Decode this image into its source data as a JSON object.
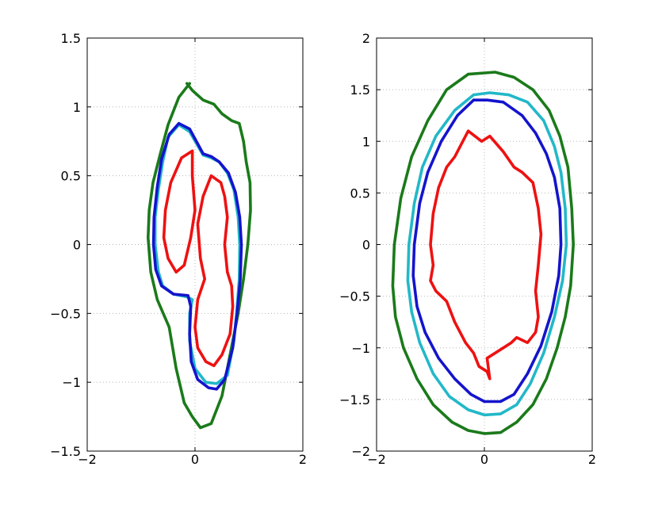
{
  "chart_data": [
    {
      "type": "line",
      "title": "",
      "xlabel": "",
      "ylabel": "",
      "xlim": [
        -2,
        2
      ],
      "ylim": [
        -1.5,
        1.5
      ],
      "xticks": [
        -2,
        0,
        2
      ],
      "xtick_labels": [
        "−2",
        "0",
        "2"
      ],
      "yticks": [
        -1.5,
        -1,
        -0.5,
        0,
        0.5,
        1,
        1.5
      ],
      "ytick_labels": [
        "−1.5",
        "−1",
        "−0.5",
        "0",
        "0.5",
        "1",
        "1.5"
      ],
      "grid": true,
      "series": [
        {
          "color": "#1a7a1a",
          "x": [
            -0.1,
            -0.3,
            -0.5,
            -0.65,
            -0.78,
            -0.85,
            -0.87,
            -0.82,
            -0.7,
            -0.48,
            -0.35,
            -0.2,
            -0.05,
            0.1,
            0.3,
            0.5,
            0.65,
            0.8,
            0.9,
            0.98,
            1.03,
            1.02,
            0.95,
            0.9,
            0.82,
            0.68,
            0.5,
            0.35,
            0.15,
            -0.05,
            -0.15
          ],
          "y": [
            1.17,
            1.07,
            0.87,
            0.65,
            0.45,
            0.25,
            0.05,
            -0.2,
            -0.4,
            -0.6,
            -0.9,
            -1.15,
            -1.25,
            -1.33,
            -1.3,
            -1.1,
            -0.8,
            -0.5,
            -0.25,
            0.0,
            0.25,
            0.45,
            0.6,
            0.75,
            0.88,
            0.9,
            0.95,
            1.02,
            1.05,
            1.12,
            1.17
          ]
        },
        {
          "color": "#22b8c8",
          "x": [
            -0.3,
            -0.5,
            -0.6,
            -0.68,
            -0.74,
            -0.74,
            -0.68,
            -0.6,
            -0.4,
            -0.15,
            -0.05,
            -0.1,
            -0.1,
            0.0,
            0.2,
            0.4,
            0.6,
            0.72,
            0.77,
            0.82,
            0.83,
            0.8,
            0.72,
            0.6,
            0.45,
            0.3,
            0.15,
            -0.1,
            -0.3
          ],
          "y": [
            0.87,
            0.78,
            0.6,
            0.4,
            0.2,
            0.0,
            -0.2,
            -0.3,
            -0.36,
            -0.38,
            -0.4,
            -0.5,
            -0.7,
            -0.9,
            -1.0,
            -1.01,
            -0.95,
            -0.7,
            -0.5,
            -0.25,
            0.0,
            0.2,
            0.4,
            0.52,
            0.6,
            0.63,
            0.65,
            0.82,
            0.87
          ]
        },
        {
          "color": "#1414cc",
          "x": [
            -0.3,
            -0.48,
            -0.62,
            -0.7,
            -0.76,
            -0.77,
            -0.73,
            -0.62,
            -0.4,
            -0.13,
            -0.08,
            -0.1,
            -0.07,
            0.05,
            0.25,
            0.4,
            0.55,
            0.7,
            0.78,
            0.84,
            0.86,
            0.83,
            0.75,
            0.62,
            0.45,
            0.3,
            0.15,
            -0.1,
            -0.3
          ],
          "y": [
            0.88,
            0.8,
            0.62,
            0.42,
            0.2,
            0.0,
            -0.18,
            -0.3,
            -0.36,
            -0.37,
            -0.45,
            -0.65,
            -0.85,
            -0.98,
            -1.04,
            -1.05,
            -0.98,
            -0.75,
            -0.5,
            -0.25,
            0.0,
            0.2,
            0.38,
            0.52,
            0.6,
            0.64,
            0.66,
            0.84,
            0.88
          ]
        },
        {
          "color": "#ee1111",
          "x": [
            -0.05,
            -0.25,
            -0.45,
            -0.55,
            -0.58,
            -0.5,
            -0.35,
            -0.2,
            -0.08,
            0.0,
            -0.05,
            -0.05
          ],
          "y": [
            0.68,
            0.63,
            0.45,
            0.25,
            0.05,
            -0.1,
            -0.2,
            -0.15,
            0.05,
            0.25,
            0.5,
            0.68
          ]
        },
        {
          "color": "#ee1111",
          "x": [
            0.3,
            0.15,
            0.05,
            0.1,
            0.18,
            0.05,
            0.0,
            0.05,
            0.2,
            0.35,
            0.5,
            0.65,
            0.7,
            0.68,
            0.6,
            0.55,
            0.6,
            0.55,
            0.48,
            0.3
          ],
          "y": [
            0.5,
            0.35,
            0.15,
            -0.1,
            -0.25,
            -0.4,
            -0.6,
            -0.75,
            -0.85,
            -0.88,
            -0.8,
            -0.65,
            -0.45,
            -0.3,
            -0.2,
            0.0,
            0.2,
            0.35,
            0.45,
            0.5
          ]
        }
      ]
    },
    {
      "type": "line",
      "title": "",
      "xlabel": "",
      "ylabel": "",
      "xlim": [
        -2,
        2
      ],
      "ylim": [
        -2,
        2
      ],
      "xticks": [
        -2,
        0,
        2
      ],
      "xtick_labels": [
        "−2",
        "0",
        "2"
      ],
      "yticks": [
        -2,
        -1.5,
        -1,
        -0.5,
        0,
        0.5,
        1,
        1.5,
        2
      ],
      "ytick_labels": [
        "−2",
        "−1.5",
        "−1",
        "−0.5",
        "0",
        "0.5",
        "1",
        "1.5",
        "2"
      ],
      "grid": true,
      "series": [
        {
          "color": "#1a7a1a",
          "x": [
            -0.3,
            -0.7,
            -1.05,
            -1.35,
            -1.55,
            -1.67,
            -1.7,
            -1.65,
            -1.5,
            -1.25,
            -0.95,
            -0.6,
            -0.3,
            0.0,
            0.3,
            0.6,
            0.9,
            1.15,
            1.35,
            1.5,
            1.6,
            1.65,
            1.62,
            1.55,
            1.4,
            1.2,
            0.9,
            0.55,
            0.2,
            -0.3
          ],
          "y": [
            1.65,
            1.5,
            1.2,
            0.85,
            0.45,
            0.0,
            -0.4,
            -0.7,
            -1.0,
            -1.3,
            -1.55,
            -1.72,
            -1.8,
            -1.83,
            -1.82,
            -1.72,
            -1.55,
            -1.3,
            -1.0,
            -0.7,
            -0.4,
            0.0,
            0.35,
            0.75,
            1.05,
            1.3,
            1.5,
            1.62,
            1.67,
            1.65
          ]
        },
        {
          "color": "#22b8c8",
          "x": [
            -0.2,
            -0.55,
            -0.9,
            -1.15,
            -1.3,
            -1.4,
            -1.42,
            -1.35,
            -1.2,
            -0.95,
            -0.65,
            -0.3,
            0.0,
            0.3,
            0.6,
            0.85,
            1.1,
            1.3,
            1.45,
            1.52,
            1.5,
            1.42,
            1.3,
            1.1,
            0.8,
            0.45,
            0.1,
            -0.2
          ],
          "y": [
            1.45,
            1.3,
            1.05,
            0.75,
            0.4,
            0.0,
            -0.35,
            -0.65,
            -0.95,
            -1.25,
            -1.47,
            -1.6,
            -1.65,
            -1.64,
            -1.55,
            -1.35,
            -1.05,
            -0.7,
            -0.35,
            0.0,
            0.35,
            0.7,
            0.95,
            1.2,
            1.38,
            1.45,
            1.47,
            1.45
          ]
        },
        {
          "color": "#1414cc",
          "x": [
            -0.2,
            -0.5,
            -0.8,
            -1.05,
            -1.2,
            -1.3,
            -1.32,
            -1.25,
            -1.1,
            -0.85,
            -0.55,
            -0.25,
            0.0,
            0.3,
            0.55,
            0.8,
            1.05,
            1.25,
            1.38,
            1.42,
            1.4,
            1.3,
            1.15,
            0.95,
            0.7,
            0.35,
            0.05,
            -0.2
          ],
          "y": [
            1.4,
            1.25,
            1.0,
            0.7,
            0.4,
            0.0,
            -0.3,
            -0.6,
            -0.85,
            -1.1,
            -1.3,
            -1.45,
            -1.52,
            -1.52,
            -1.45,
            -1.25,
            -0.98,
            -0.65,
            -0.3,
            0.0,
            0.35,
            0.65,
            0.88,
            1.08,
            1.25,
            1.38,
            1.4,
            1.4
          ]
        },
        {
          "color": "#ee1111",
          "x": [
            -0.3,
            -0.55,
            -0.7,
            -0.85,
            -0.95,
            -1.0,
            -0.95,
            -1.0,
            -0.9,
            -0.7,
            -0.55,
            -0.35,
            -0.2,
            -0.1,
            0.05,
            0.1,
            0.05,
            0.2,
            0.35,
            0.5,
            0.6,
            0.8,
            0.95,
            1.0,
            0.95,
            1.0,
            1.05,
            1.0,
            0.9,
            0.7,
            0.55,
            0.35,
            0.1,
            -0.05,
            -0.3
          ],
          "y": [
            1.1,
            0.85,
            0.75,
            0.55,
            0.3,
            0.0,
            -0.2,
            -0.35,
            -0.45,
            -0.55,
            -0.75,
            -0.95,
            -1.05,
            -1.18,
            -1.23,
            -1.3,
            -1.1,
            -1.05,
            -1.0,
            -0.95,
            -0.9,
            -0.95,
            -0.85,
            -0.7,
            -0.45,
            -0.2,
            0.1,
            0.35,
            0.6,
            0.7,
            0.75,
            0.9,
            1.05,
            1.0,
            1.1
          ]
        }
      ]
    }
  ]
}
